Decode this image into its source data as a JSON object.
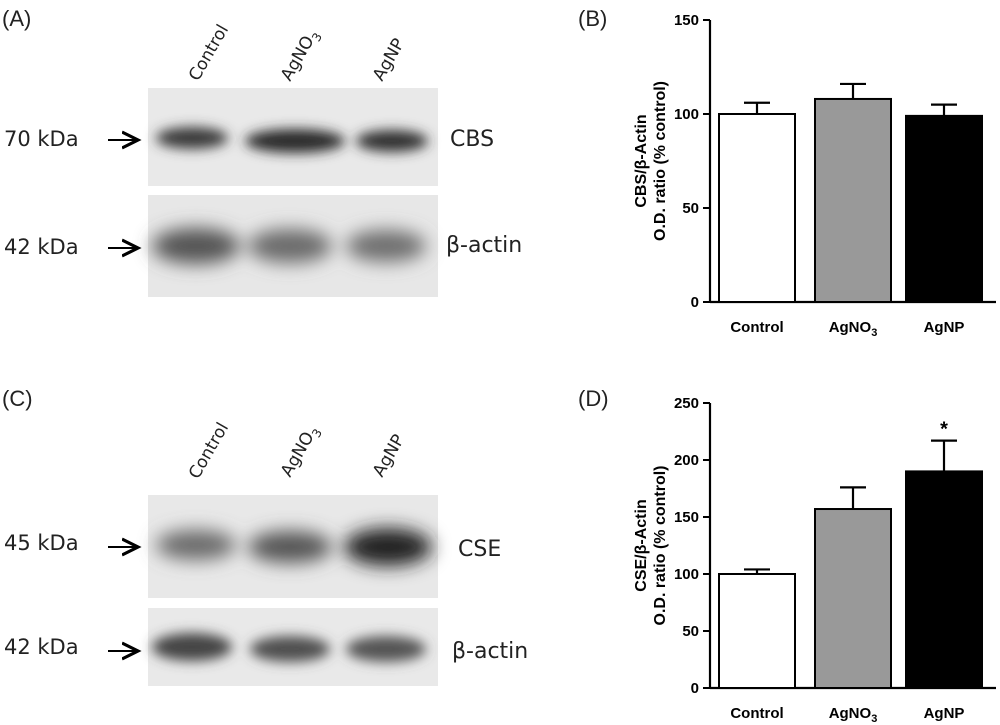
{
  "panels": {
    "a": "(A)",
    "b": "(B)",
    "c": "(C)",
    "d": "(D)"
  },
  "blot_a": {
    "lanes": [
      {
        "main": "Control",
        "sub": ""
      },
      {
        "main": "AgNO",
        "sub": "3"
      },
      {
        "main": "AgNP",
        "sub": ""
      }
    ],
    "rows": [
      {
        "kda": "70 kDa",
        "protein": "CBS"
      },
      {
        "kda": "42 kDa",
        "protein": "β-actin"
      }
    ]
  },
  "blot_c": {
    "lanes": [
      {
        "main": "Control",
        "sub": ""
      },
      {
        "main": "AgNO",
        "sub": "3"
      },
      {
        "main": "AgNP",
        "sub": ""
      }
    ],
    "rows": [
      {
        "kda": "45 kDa",
        "protein": "CSE"
      },
      {
        "kda": "42 kDa",
        "protein": "β-actin"
      }
    ]
  },
  "chart_data": [
    {
      "type": "bar",
      "panel": "B",
      "categories": [
        {
          "main": "Control",
          "sub": ""
        },
        {
          "main": "AgNO",
          "sub": "3"
        },
        {
          "main": "AgNP",
          "sub": ""
        }
      ],
      "values": [
        100,
        108,
        99
      ],
      "errors": [
        6,
        8,
        6
      ],
      "colors": [
        "#ffffff",
        "#999999",
        "#000000"
      ],
      "ylabel_line1": "CBS/β-Actin",
      "ylabel_line2": "O.D. ratio (% control)",
      "ylim": [
        0,
        150
      ],
      "yticks": [
        0,
        50,
        100,
        150
      ],
      "annotations": [
        "",
        "",
        ""
      ]
    },
    {
      "type": "bar",
      "panel": "D",
      "categories": [
        {
          "main": "Control",
          "sub": ""
        },
        {
          "main": "AgNO",
          "sub": "3"
        },
        {
          "main": "AgNP",
          "sub": ""
        }
      ],
      "values": [
        100,
        157,
        190
      ],
      "errors": [
        4,
        19,
        27
      ],
      "colors": [
        "#ffffff",
        "#999999",
        "#000000"
      ],
      "ylabel_line1": "CSE/β-Actin",
      "ylabel_line2": "O.D. ratio (% control)",
      "ylim": [
        0,
        250
      ],
      "yticks": [
        0,
        50,
        100,
        150,
        200,
        250
      ],
      "annotations": [
        "",
        "",
        "*"
      ]
    }
  ]
}
